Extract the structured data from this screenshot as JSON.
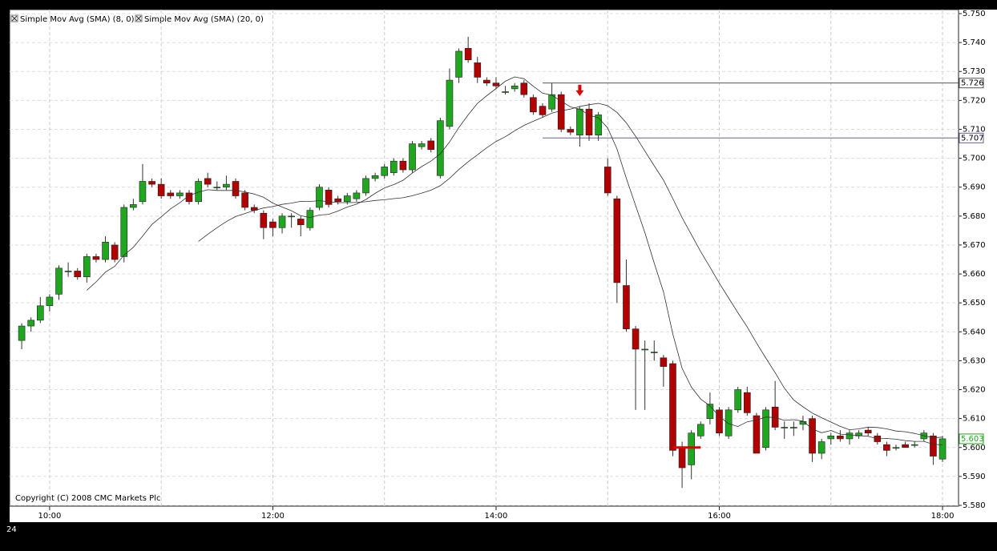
{
  "chart_data": {
    "type": "candlestick",
    "legend": [
      "Simple Mov Avg (SMA) (8, 0)",
      "Simple Mov Avg (SMA) (20, 0)"
    ],
    "indicators": [
      {
        "name": "Simple Mov Avg (SMA) (8, 0)",
        "period": 8,
        "color": "#333333"
      },
      {
        "name": "Simple Mov Avg (SMA) (20, 0)",
        "period": 20,
        "color": "#333333"
      }
    ],
    "copyright": "Copyright (C) 2008 CMC Markets Plc",
    "corner_label": "24",
    "up_color": "#1fa81f",
    "down_color": "#b30000",
    "x": [
      585,
      590,
      595,
      600,
      605,
      610,
      615,
      620,
      625,
      630,
      635,
      640,
      645,
      650,
      655,
      660,
      665,
      670,
      675,
      680,
      685,
      690,
      695,
      700,
      705,
      710,
      715,
      720,
      725,
      730,
      735,
      740,
      745,
      750,
      755,
      760,
      765,
      770,
      775,
      780,
      785,
      790,
      795,
      800,
      805,
      810,
      815,
      820,
      825,
      830,
      835,
      840,
      845,
      850,
      855,
      860,
      865,
      870,
      875,
      880,
      885,
      890,
      895,
      900,
      905,
      910,
      915,
      920,
      925,
      930,
      935,
      940,
      945,
      950,
      955,
      960,
      965,
      970,
      975,
      980,
      985,
      990,
      995,
      1000,
      1005,
      1010,
      1015,
      1020,
      1025,
      1030,
      1035,
      1040,
      1045,
      1050,
      1055,
      1060,
      1065,
      1070,
      1075,
      1080
    ],
    "open": [
      5.637,
      5.642,
      5.644,
      5.649,
      5.653,
      5.661,
      5.661,
      5.659,
      5.666,
      5.665,
      5.67,
      5.666,
      5.683,
      5.685,
      5.692,
      5.691,
      5.688,
      5.687,
      5.688,
      5.685,
      5.693,
      5.69,
      5.69,
      5.692,
      5.688,
      5.683,
      5.681,
      5.678,
      5.676,
      5.68,
      5.679,
      5.676,
      5.683,
      5.689,
      5.686,
      5.685,
      5.686,
      5.688,
      5.693,
      5.694,
      5.695,
      5.699,
      5.696,
      5.704,
      5.706,
      5.694,
      5.711,
      5.728,
      5.738,
      5.733,
      5.727,
      5.726,
      5.723,
      5.724,
      5.726,
      5.721,
      5.718,
      5.717,
      5.722,
      5.71,
      5.708,
      5.717,
      5.708,
      5.697,
      5.686,
      5.656,
      5.641,
      5.634,
      5.633,
      5.631,
      5.629,
      5.6,
      5.594,
      5.604,
      5.61,
      5.613,
      5.604,
      5.613,
      5.619,
      5.611,
      5.6,
      5.614,
      5.607,
      5.607,
      5.608,
      5.61,
      5.598,
      5.603,
      5.604,
      5.603,
      5.604,
      5.606,
      5.604,
      5.601,
      5.6,
      5.601,
      5.601,
      5.603,
      5.604,
      5.596
    ],
    "high": [
      5.643,
      5.645,
      5.652,
      5.653,
      5.663,
      5.664,
      5.662,
      5.667,
      5.667,
      5.673,
      5.671,
      5.684,
      5.686,
      5.698,
      5.693,
      5.693,
      5.689,
      5.689,
      5.689,
      5.693,
      5.695,
      5.692,
      5.694,
      5.693,
      5.689,
      5.684,
      5.682,
      5.679,
      5.681,
      5.681,
      5.68,
      5.683,
      5.691,
      5.69,
      5.687,
      5.688,
      5.689,
      5.694,
      5.695,
      5.698,
      5.7,
      5.7,
      5.706,
      5.706,
      5.707,
      5.714,
      5.731,
      5.738,
      5.742,
      5.735,
      5.728,
      5.728,
      5.725,
      5.726,
      5.727,
      5.722,
      5.719,
      5.726,
      5.723,
      5.711,
      5.718,
      5.719,
      5.716,
      5.7,
      5.687,
      5.665,
      5.642,
      5.637,
      5.637,
      5.632,
      5.63,
      5.602,
      5.606,
      5.609,
      5.619,
      5.614,
      5.614,
      5.621,
      5.621,
      5.612,
      5.614,
      5.623,
      5.609,
      5.609,
      5.611,
      5.611,
      5.603,
      5.605,
      5.606,
      5.606,
      5.606,
      5.607,
      5.605,
      5.602,
      5.601,
      5.602,
      5.602,
      5.606,
      5.605,
      5.604
    ],
    "low": [
      5.634,
      5.64,
      5.643,
      5.647,
      5.651,
      5.659,
      5.658,
      5.657,
      5.664,
      5.664,
      5.664,
      5.664,
      5.682,
      5.684,
      5.69,
      5.686,
      5.686,
      5.686,
      5.684,
      5.684,
      5.69,
      5.689,
      5.689,
      5.686,
      5.682,
      5.681,
      5.672,
      5.673,
      5.674,
      5.676,
      5.673,
      5.675,
      5.682,
      5.683,
      5.684,
      5.684,
      5.685,
      5.687,
      5.692,
      5.693,
      5.694,
      5.695,
      5.695,
      5.703,
      5.702,
      5.693,
      5.71,
      5.726,
      5.733,
      5.726,
      5.725,
      5.724,
      5.722,
      5.723,
      5.721,
      5.715,
      5.714,
      5.716,
      5.709,
      5.708,
      5.704,
      5.706,
      5.706,
      5.687,
      5.65,
      5.64,
      5.613,
      5.613,
      5.63,
      5.621,
      5.597,
      5.586,
      5.589,
      5.603,
      5.608,
      5.604,
      5.603,
      5.612,
      5.611,
      5.598,
      5.599,
      5.606,
      5.603,
      5.604,
      5.606,
      5.595,
      5.596,
      5.601,
      5.602,
      5.601,
      5.603,
      5.604,
      5.601,
      5.597,
      5.599,
      5.6,
      5.6,
      5.602,
      5.594,
      5.595
    ],
    "close": [
      5.642,
      5.644,
      5.649,
      5.652,
      5.662,
      5.661,
      5.659,
      5.666,
      5.665,
      5.671,
      5.665,
      5.683,
      5.684,
      5.692,
      5.691,
      5.687,
      5.687,
      5.688,
      5.685,
      5.692,
      5.691,
      5.69,
      5.691,
      5.687,
      5.683,
      5.682,
      5.676,
      5.676,
      5.68,
      5.68,
      5.677,
      5.682,
      5.69,
      5.684,
      5.685,
      5.687,
      5.688,
      5.693,
      5.694,
      5.697,
      5.699,
      5.696,
      5.705,
      5.705,
      5.703,
      5.713,
      5.727,
      5.737,
      5.734,
      5.728,
      5.726,
      5.725,
      5.723,
      5.725,
      5.722,
      5.716,
      5.715,
      5.722,
      5.71,
      5.709,
      5.717,
      5.708,
      5.715,
      5.688,
      5.657,
      5.641,
      5.634,
      5.634,
      5.633,
      5.628,
      5.599,
      5.593,
      5.605,
      5.608,
      5.615,
      5.605,
      5.613,
      5.62,
      5.612,
      5.598,
      5.613,
      5.607,
      5.607,
      5.607,
      5.609,
      5.598,
      5.602,
      5.604,
      5.603,
      5.605,
      5.605,
      5.605,
      5.602,
      5.599,
      5.6,
      5.6,
      5.601,
      5.605,
      5.597,
      5.603
    ],
    "xlim": [
      578.5,
      1088.6
    ],
    "xticks": [
      {
        "value": 600,
        "label": "10:00"
      },
      {
        "value": 720,
        "label": "12:00"
      },
      {
        "value": 840,
        "label": "14:00"
      },
      {
        "value": 960,
        "label": "16:00"
      },
      {
        "value": 1080,
        "label": "18:00"
      }
    ],
    "x_grid": [
      660,
      780,
      900,
      1020
    ],
    "ylim": [
      5.58,
      5.75
    ],
    "yticks": [
      {
        "value": 5.58,
        "label": "5.580"
      },
      {
        "value": 5.59,
        "label": "5.590"
      },
      {
        "value": 5.6,
        "label": "5.600"
      },
      {
        "value": 5.61,
        "label": "5.610"
      },
      {
        "value": 5.62,
        "label": "5.620"
      },
      {
        "value": 5.63,
        "label": "5.630"
      },
      {
        "value": 5.64,
        "label": "5.640"
      },
      {
        "value": 5.65,
        "label": "5.650"
      },
      {
        "value": 5.66,
        "label": "5.660"
      },
      {
        "value": 5.67,
        "label": "5.670"
      },
      {
        "value": 5.68,
        "label": "5.680"
      },
      {
        "value": 5.69,
        "label": "5.690"
      },
      {
        "value": 5.7,
        "label": "5.700"
      },
      {
        "value": 5.71,
        "label": "5.710"
      },
      {
        "value": 5.72,
        "label": "5.720"
      },
      {
        "value": 5.73,
        "label": "5.730"
      },
      {
        "value": 5.74,
        "label": "5.740"
      },
      {
        "value": 5.75,
        "label": "5.750"
      }
    ],
    "levels": [
      {
        "value": 5.726,
        "label": "5.726",
        "start": 865,
        "color": "#555555"
      },
      {
        "value": 5.707,
        "label": "5.707",
        "start": 865,
        "color": "#6a5a9a"
      }
    ],
    "last_price": {
      "value": 5.603,
      "label": "5.603",
      "color": "#1fa81f"
    },
    "arrow": {
      "x": 885,
      "y": 5.7215,
      "color": "#e00000"
    },
    "segment": {
      "x": [
        935,
        950
      ],
      "y": 5.6,
      "color": "#e00000"
    },
    "grid": true
  }
}
